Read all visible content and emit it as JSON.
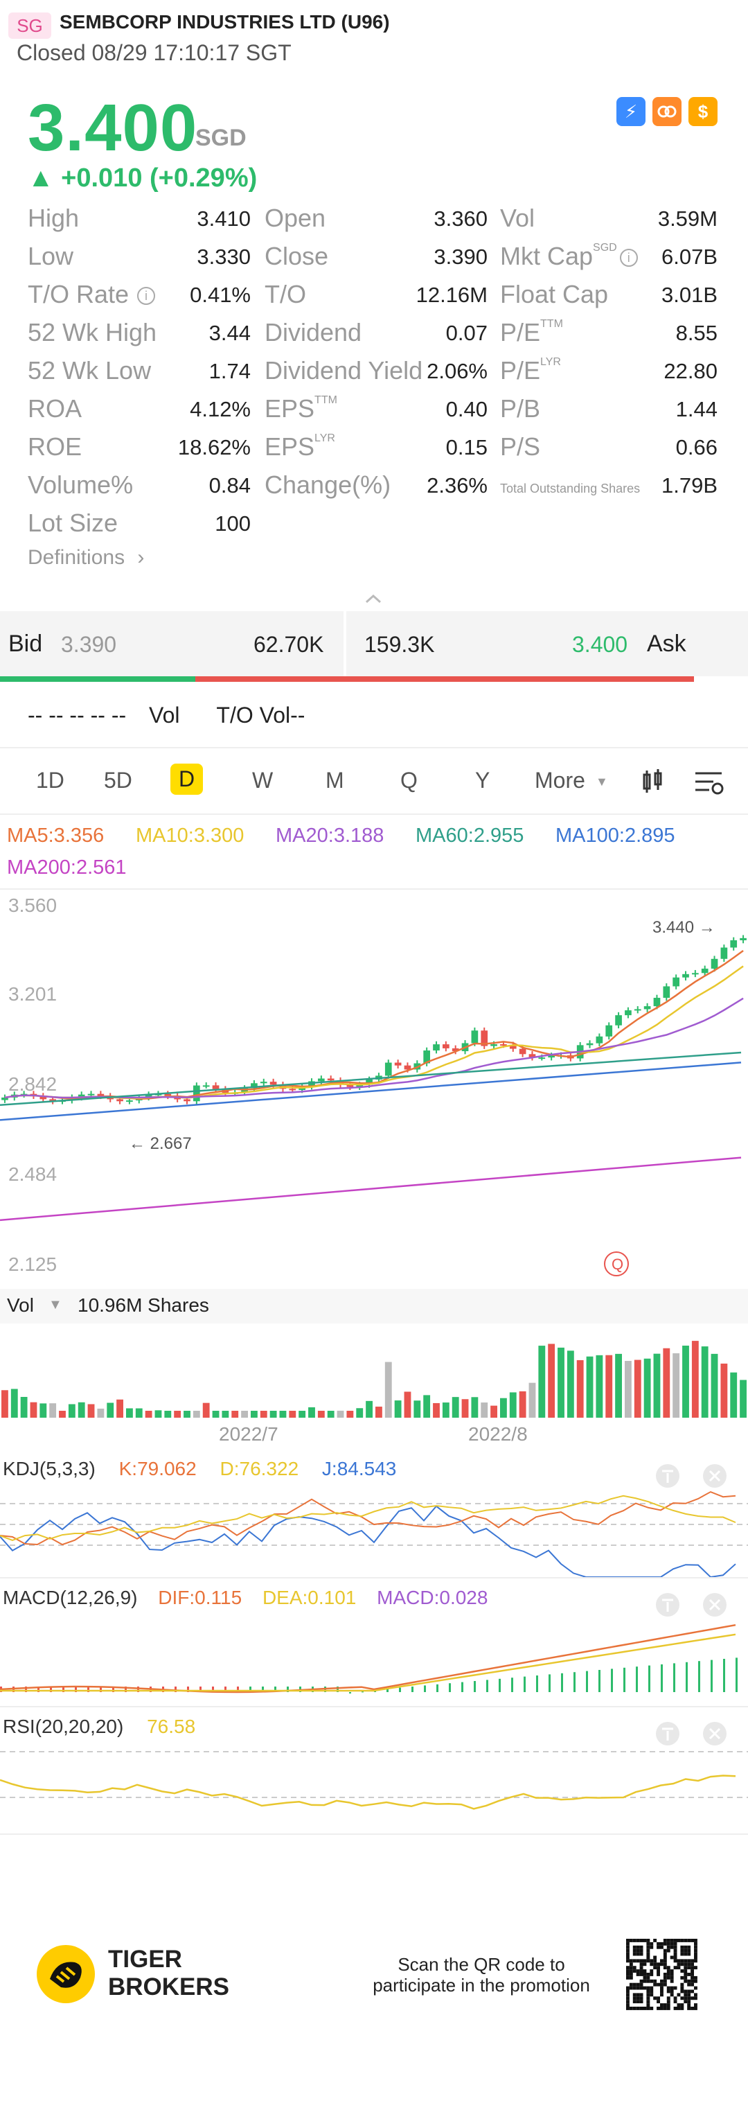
{
  "header": {
    "market": "SG",
    "company": "SEMBCORP INDUSTRIES LTD (U96)",
    "status": "Closed 08/29 17:10:17 SGT"
  },
  "quote": {
    "price": "3.400",
    "currency": "SGD",
    "change": "▲ +0.010 (+0.29%)"
  },
  "icons": [
    {
      "name": "lightning-icon",
      "color": "#3b8cff",
      "glyph": "⚡"
    },
    {
      "name": "moomoo-icon",
      "color": "#ff8a2b",
      "glyph": "◉"
    },
    {
      "name": "dollar-icon",
      "color": "#ffa800",
      "glyph": "$"
    }
  ],
  "stats": {
    "col1": [
      {
        "label": "High",
        "value": "3.410"
      },
      {
        "label": "Low",
        "value": "3.330"
      },
      {
        "label": "T/O Rate",
        "value": "0.41%"
      },
      {
        "label": "52 Wk High",
        "value": "3.44"
      },
      {
        "label": "52 Wk Low",
        "value": "1.74"
      },
      {
        "label": "ROA",
        "value": "4.12%"
      },
      {
        "label": "ROE",
        "value": "18.62%"
      },
      {
        "label": "Volume%",
        "value": "0.84"
      },
      {
        "label": "Lot Size",
        "value": "100"
      }
    ],
    "col2": [
      {
        "label": "Open",
        "sup": "",
        "value": "3.360"
      },
      {
        "label": "Close",
        "sup": "",
        "value": "3.390"
      },
      {
        "label": "T/O",
        "sup": "",
        "value": "12.16M"
      },
      {
        "label": "Dividend",
        "sup": "",
        "value": "0.07"
      },
      {
        "label": "Dividend Yield",
        "sup": "",
        "value": "2.06%"
      },
      {
        "label": "EPS",
        "sup": "TTM",
        "value": "0.40"
      },
      {
        "label": "EPS",
        "sup": "LYR",
        "value": "0.15"
      },
      {
        "label": "Change(%)",
        "sup": "",
        "value": "2.36%"
      }
    ],
    "col3": [
      {
        "label": "Vol",
        "sup": "",
        "value": "3.59M"
      },
      {
        "label": "Mkt Cap",
        "sup": "SGD",
        "value": "6.07B"
      },
      {
        "label": "Float Cap",
        "sup": "",
        "value": "3.01B"
      },
      {
        "label": "P/E",
        "sup": "TTM",
        "value": "8.55"
      },
      {
        "label": "P/E",
        "sup": "LYR",
        "value": "22.80"
      },
      {
        "label": "P/B",
        "sup": "",
        "value": "1.44"
      },
      {
        "label": "P/S",
        "sup": "",
        "value": "0.66"
      },
      {
        "label": "Total Outstanding Shares",
        "sup": "",
        "value": "1.79B"
      }
    ],
    "definitions": "Definitions"
  },
  "orderbook": {
    "bid_label": "Bid",
    "bid_price": "3.390",
    "bid_volume": "62.70K",
    "ask_volume": "159.3K",
    "ask_price": "3.400",
    "ask_label": "Ask",
    "bid_ratio": 0.28
  },
  "volume_line": {
    "placeholder": "-- -- -- -- --",
    "vol": "Vol",
    "to_vol": "T/O Vol--"
  },
  "periods": [
    "1D",
    "5D",
    "D",
    "W",
    "M",
    "Q",
    "Y",
    "More"
  ],
  "active_period": "D",
  "ma": [
    {
      "label": "MA5:3.356",
      "color": "#e8733a"
    },
    {
      "label": "MA10:3.300",
      "color": "#e8c62e"
    },
    {
      "label": "MA20:3.188",
      "color": "#a05bd0"
    },
    {
      "label": "MA60:2.955",
      "color": "#2f9f8a"
    },
    {
      "label": "MA100:2.895",
      "color": "#3b76d4"
    },
    {
      "label": "MA200:2.561",
      "color": "#c444c4"
    }
  ],
  "main_chart": {
    "y_ticks": [
      "3.560",
      "3.201",
      "2.842",
      "2.484",
      "2.125"
    ],
    "high_mark": "3.440",
    "low_mark": "2.667"
  },
  "vol_panel": {
    "label": "Vol",
    "value": "10.96M Shares",
    "x_labels": [
      "2022/7",
      "2022/8"
    ]
  },
  "kdj": {
    "title": "KDJ(5,3,3)",
    "k": "K:79.062",
    "d": "D:76.322",
    "j": "J:84.543"
  },
  "macd": {
    "title": "MACD(12,26,9)",
    "dif": "DIF:0.115",
    "dea": "DEA:0.101",
    "macd": "MACD:0.028"
  },
  "rsi": {
    "title": "RSI(20,20,20)",
    "value": "76.58"
  },
  "footer": {
    "brand_line1": "TIGER",
    "brand_line2": "BROKERS",
    "promo_line1": "Scan the QR code to",
    "promo_line2": "participate in the promotion"
  },
  "colors": {
    "up": "#2dbb6b",
    "down": "#e8544e",
    "accent": "#ffdd00"
  }
}
